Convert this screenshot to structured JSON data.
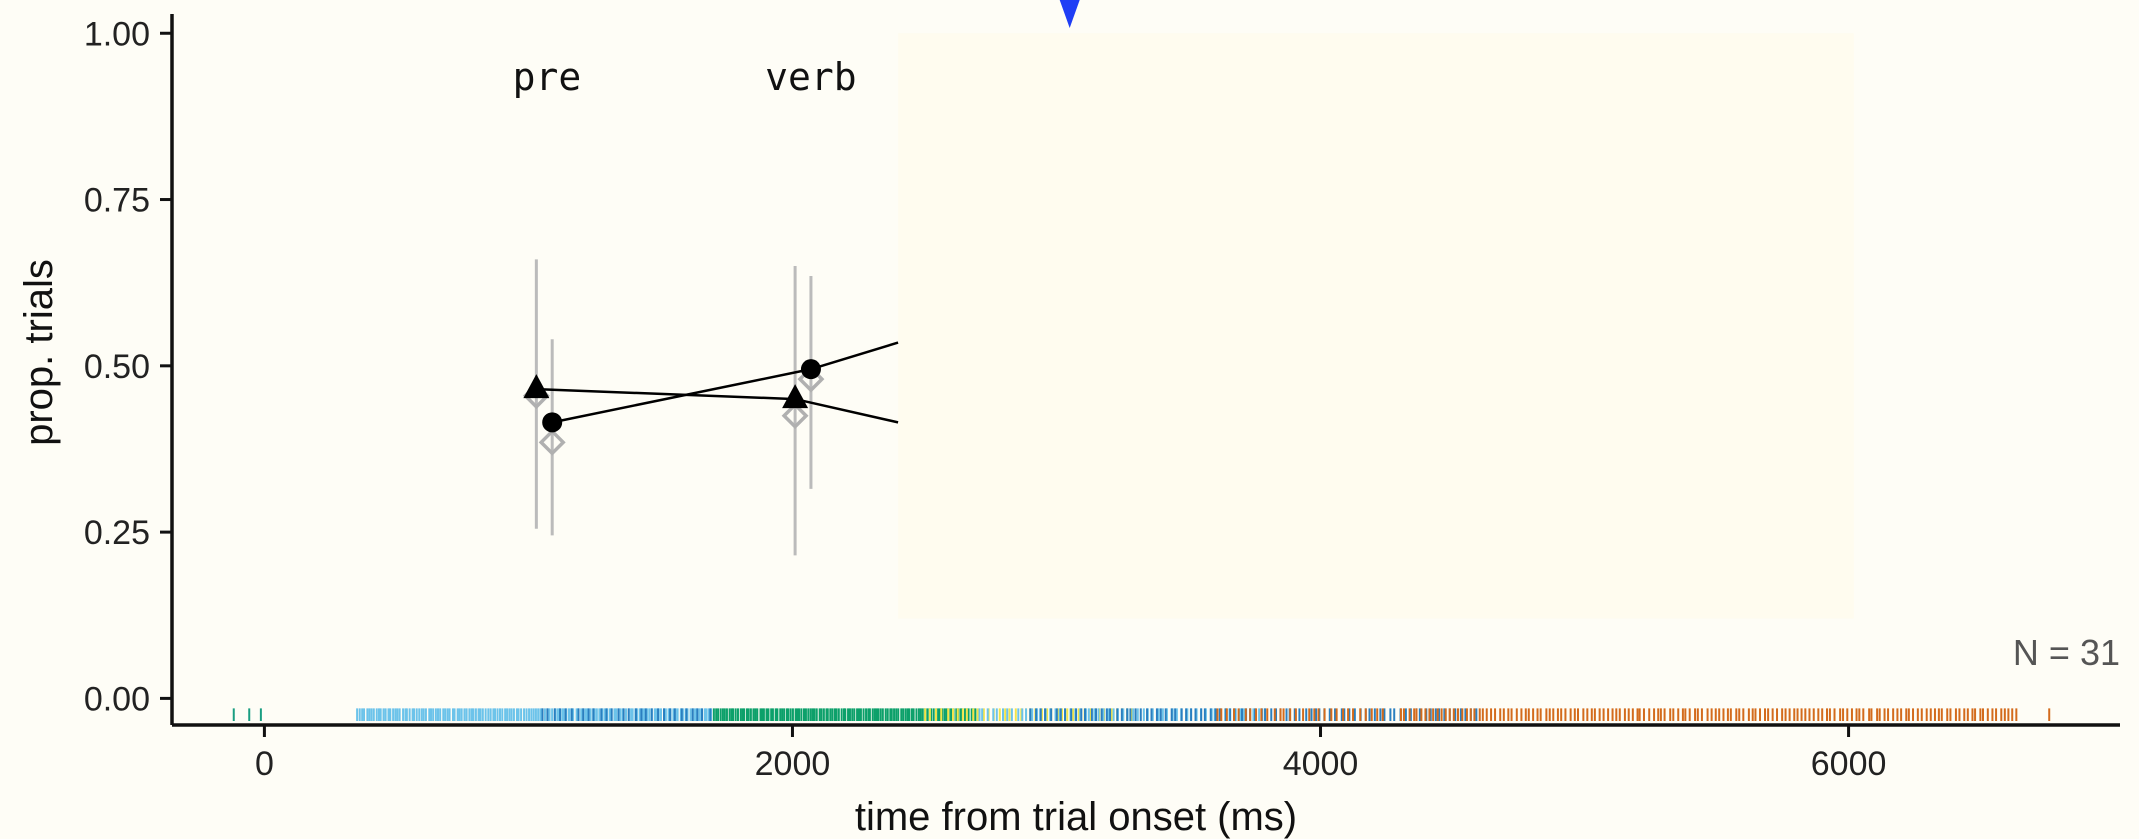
{
  "chart_data": {
    "type": "scatter",
    "title": "",
    "xlabel": "time from trial onset (ms)",
    "ylabel": "prop. trials",
    "xlim": [
      -350,
      7100
    ],
    "ylim": [
      -0.04,
      1.05
    ],
    "xticks": [
      0,
      2000,
      4000,
      6000
    ],
    "xtick_labels": [
      "0",
      "2000",
      "4000",
      "6000"
    ],
    "yticks": [
      0,
      0.25,
      0.5,
      0.75,
      1.0
    ],
    "ytick_labels": [
      "0.00",
      "0.25",
      "0.50",
      "0.75",
      "1.00"
    ],
    "grid": false,
    "legend": "none",
    "region_labels": [
      {
        "text": "pre",
        "x": 1070
      },
      {
        "text": "verb",
        "x": 2070
      }
    ],
    "annotation": "N = 31",
    "marker_x": 3050,
    "overlay_x_range": [
      2400,
      6020
    ],
    "overlay_y_range": [
      0.12,
      1.0
    ],
    "series": [
      {
        "marker": "triangle",
        "color": "#000000",
        "points": [
          {
            "x": 1030,
            "y": 0.465
          },
          {
            "x": 2010,
            "y": 0.45
          },
          {
            "x": 2400,
            "y": 0.415
          }
        ]
      },
      {
        "marker": "circle",
        "color": "#000000",
        "points": [
          {
            "x": 1090,
            "y": 0.415
          },
          {
            "x": 2070,
            "y": 0.495
          },
          {
            "x": 2400,
            "y": 0.535
          }
        ]
      },
      {
        "marker": "open-diamond",
        "color": "#b0b0b0",
        "points": [
          {
            "x": 1030,
            "y": 0.455,
            "lo": 0.255,
            "hi": 0.66
          },
          {
            "x": 1090,
            "y": 0.385,
            "lo": 0.245,
            "hi": 0.54
          },
          {
            "x": 2010,
            "y": 0.425,
            "lo": 0.215,
            "hi": 0.65
          },
          {
            "x": 2070,
            "y": 0.48,
            "lo": 0.315,
            "hi": 0.635
          }
        ]
      }
    ],
    "rug": {
      "colors": {
        "teal": "#1a9e82",
        "lightblue": "#6cc3ea",
        "blue": "#2a7fc0",
        "green": "#0ca06a",
        "yellow": "#f2e44a",
        "orange": "#d36b1c"
      },
      "segments": [
        {
          "from": -130,
          "to": 40,
          "color": "teal",
          "count": 3
        },
        {
          "from": 350,
          "to": 1700,
          "color": "lightblue",
          "count": 150
        },
        {
          "from": 1050,
          "to": 1700,
          "color": "blue",
          "count": 30
        },
        {
          "from": 1700,
          "to": 2700,
          "color": "green",
          "count": 120
        },
        {
          "from": 2500,
          "to": 3300,
          "color": "yellow",
          "count": 40
        },
        {
          "from": 2700,
          "to": 3800,
          "color": "lightblue",
          "count": 60
        },
        {
          "from": 2900,
          "to": 4600,
          "color": "blue",
          "count": 90
        },
        {
          "from": 3600,
          "to": 4250,
          "color": "orange",
          "count": 30
        },
        {
          "from": 4300,
          "to": 6650,
          "color": "orange",
          "count": 150
        },
        {
          "from": 6760,
          "to": 6760,
          "color": "orange",
          "count": 1
        }
      ]
    }
  }
}
